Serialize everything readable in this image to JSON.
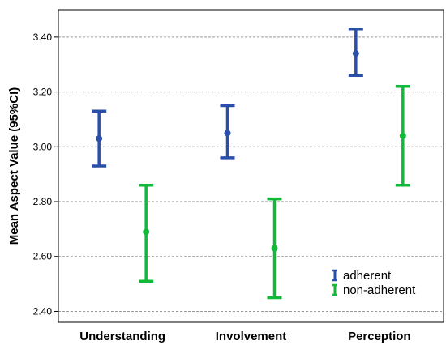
{
  "chart_data": {
    "type": "errorbar",
    "title": "",
    "xlabel": "",
    "ylabel": "Mean Aspect Value (95%CI)",
    "ylim": [
      2.36,
      3.5
    ],
    "yticks": [
      2.4,
      2.6,
      2.8,
      3.0,
      3.2,
      3.4
    ],
    "ytick_labels": [
      "2.40",
      "2.60",
      "2.80",
      "3.00",
      "3.20",
      "3.40"
    ],
    "grid": "horizontal dashed",
    "legend_position": "bottom-right",
    "categories": [
      "Understanding",
      "Involvement",
      "Perception"
    ],
    "series": [
      {
        "name": "adherent",
        "color": "#2a4fa8",
        "mean": [
          3.03,
          3.05,
          3.34
        ],
        "lower": [
          2.93,
          2.96,
          3.26
        ],
        "upper": [
          3.13,
          3.15,
          3.43
        ]
      },
      {
        "name": "non-adherent",
        "color": "#12b83a",
        "mean": [
          2.69,
          2.63,
          3.04
        ],
        "lower": [
          2.51,
          2.45,
          2.86
        ],
        "upper": [
          2.86,
          2.81,
          3.22
        ]
      }
    ]
  }
}
